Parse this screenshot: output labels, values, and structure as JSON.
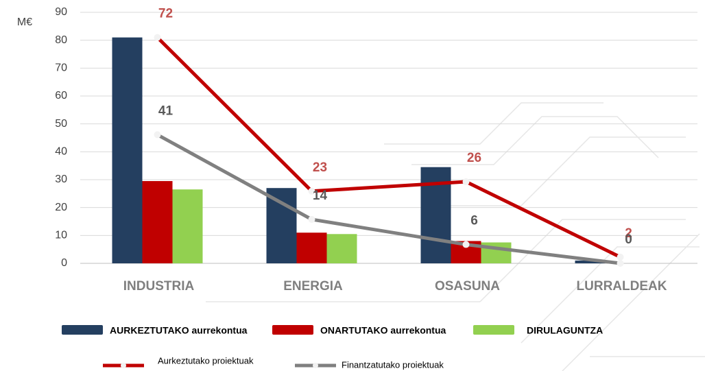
{
  "chart_data": {
    "type": "bar-line",
    "y_label": "M€",
    "categories": [
      "INDUSTRIA",
      "ENERGIA",
      "OSASUNA",
      "LURRALDEAK"
    ],
    "ylim": [
      0,
      90
    ],
    "yticks": [
      0,
      10,
      20,
      30,
      40,
      50,
      60,
      70,
      80,
      90
    ],
    "y2lim": [
      0,
      80
    ],
    "grid": true,
    "series": [
      {
        "name": "AURKEZTUTAKO aurrekontua",
        "type": "bar",
        "color": "#243f60",
        "values": [
          81,
          27,
          34.5,
          1
        ]
      },
      {
        "name": "ONARTUTAKO aurrekontua",
        "type": "bar",
        "color": "#c00000",
        "values": [
          29.5,
          11,
          8,
          0
        ]
      },
      {
        "name": "DIRULAGUNTZA",
        "type": "bar",
        "color": "#92d050",
        "values": [
          26.5,
          10.5,
          7.5,
          0
        ]
      },
      {
        "name": "Aurkeztutako proiektuak",
        "type": "line",
        "axis": "y2",
        "color": "#c00000",
        "label_color": "#c0504d",
        "values": [
          72,
          23,
          26,
          2
        ]
      },
      {
        "name": "Finantzatutako proiektuak",
        "type": "line",
        "axis": "y2",
        "color": "#808080",
        "label_color": "#595959",
        "values": [
          41,
          14,
          6,
          0
        ]
      }
    ]
  }
}
